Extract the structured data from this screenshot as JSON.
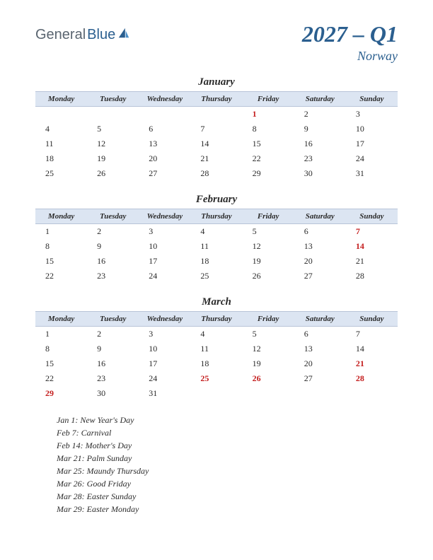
{
  "logo": {
    "part1": "General",
    "part2": "Blue"
  },
  "title": {
    "main": "2027 – Q1",
    "sub": "Norway"
  },
  "colors": {
    "header_bg": "#dce5f2",
    "header_border": "#b8c4d8",
    "text": "#2a2a2a",
    "holiday": "#c41e1e",
    "brand_blue": "#2b5f8f",
    "brand_gray": "#5a6570",
    "page_bg": "#ffffff"
  },
  "day_headers": [
    "Monday",
    "Tuesday",
    "Wednesday",
    "Thursday",
    "Friday",
    "Saturday",
    "Sunday"
  ],
  "months": [
    {
      "name": "January",
      "weeks": [
        [
          {
            "d": ""
          },
          {
            "d": ""
          },
          {
            "d": ""
          },
          {
            "d": ""
          },
          {
            "d": "1",
            "h": true
          },
          {
            "d": "2"
          },
          {
            "d": "3"
          }
        ],
        [
          {
            "d": "4"
          },
          {
            "d": "5"
          },
          {
            "d": "6"
          },
          {
            "d": "7"
          },
          {
            "d": "8"
          },
          {
            "d": "9"
          },
          {
            "d": "10"
          }
        ],
        [
          {
            "d": "11"
          },
          {
            "d": "12"
          },
          {
            "d": "13"
          },
          {
            "d": "14"
          },
          {
            "d": "15"
          },
          {
            "d": "16"
          },
          {
            "d": "17"
          }
        ],
        [
          {
            "d": "18"
          },
          {
            "d": "19"
          },
          {
            "d": "20"
          },
          {
            "d": "21"
          },
          {
            "d": "22"
          },
          {
            "d": "23"
          },
          {
            "d": "24"
          }
        ],
        [
          {
            "d": "25"
          },
          {
            "d": "26"
          },
          {
            "d": "27"
          },
          {
            "d": "28"
          },
          {
            "d": "29"
          },
          {
            "d": "30"
          },
          {
            "d": "31"
          }
        ]
      ]
    },
    {
      "name": "February",
      "weeks": [
        [
          {
            "d": "1"
          },
          {
            "d": "2"
          },
          {
            "d": "3"
          },
          {
            "d": "4"
          },
          {
            "d": "5"
          },
          {
            "d": "6"
          },
          {
            "d": "7",
            "h": true
          }
        ],
        [
          {
            "d": "8"
          },
          {
            "d": "9"
          },
          {
            "d": "10"
          },
          {
            "d": "11"
          },
          {
            "d": "12"
          },
          {
            "d": "13"
          },
          {
            "d": "14",
            "h": true
          }
        ],
        [
          {
            "d": "15"
          },
          {
            "d": "16"
          },
          {
            "d": "17"
          },
          {
            "d": "18"
          },
          {
            "d": "19"
          },
          {
            "d": "20"
          },
          {
            "d": "21"
          }
        ],
        [
          {
            "d": "22"
          },
          {
            "d": "23"
          },
          {
            "d": "24"
          },
          {
            "d": "25"
          },
          {
            "d": "26"
          },
          {
            "d": "27"
          },
          {
            "d": "28"
          }
        ]
      ]
    },
    {
      "name": "March",
      "weeks": [
        [
          {
            "d": "1"
          },
          {
            "d": "2"
          },
          {
            "d": "3"
          },
          {
            "d": "4"
          },
          {
            "d": "5"
          },
          {
            "d": "6"
          },
          {
            "d": "7"
          }
        ],
        [
          {
            "d": "8"
          },
          {
            "d": "9"
          },
          {
            "d": "10"
          },
          {
            "d": "11"
          },
          {
            "d": "12"
          },
          {
            "d": "13"
          },
          {
            "d": "14"
          }
        ],
        [
          {
            "d": "15"
          },
          {
            "d": "16"
          },
          {
            "d": "17"
          },
          {
            "d": "18"
          },
          {
            "d": "19"
          },
          {
            "d": "20"
          },
          {
            "d": "21",
            "h": true
          }
        ],
        [
          {
            "d": "22"
          },
          {
            "d": "23"
          },
          {
            "d": "24"
          },
          {
            "d": "25",
            "h": true
          },
          {
            "d": "26",
            "h": true
          },
          {
            "d": "27"
          },
          {
            "d": "28",
            "h": true
          }
        ],
        [
          {
            "d": "29",
            "h": true
          },
          {
            "d": "30"
          },
          {
            "d": "31"
          },
          {
            "d": ""
          },
          {
            "d": ""
          },
          {
            "d": ""
          },
          {
            "d": ""
          }
        ]
      ]
    }
  ],
  "holidays": [
    "Jan 1: New Year's Day",
    "Feb 7: Carnival",
    "Feb 14: Mother's Day",
    "Mar 21: Palm Sunday",
    "Mar 25: Maundy Thursday",
    "Mar 26: Good Friday",
    "Mar 28: Easter Sunday",
    "Mar 29: Easter Monday"
  ]
}
